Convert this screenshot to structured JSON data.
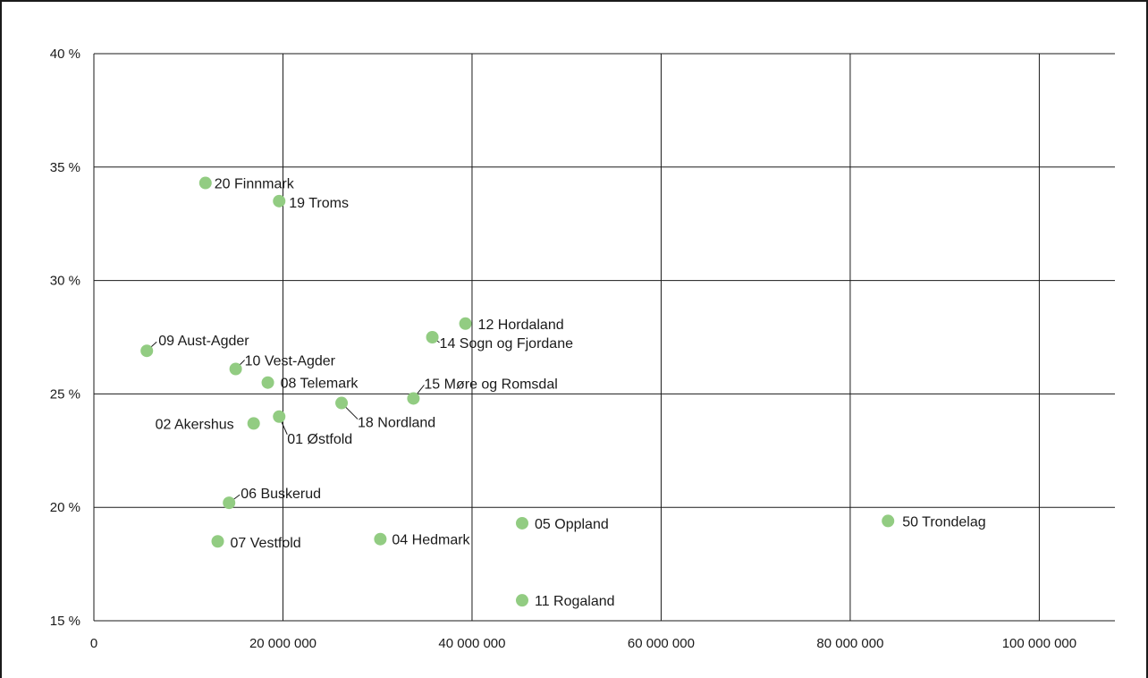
{
  "chart_data": {
    "type": "scatter",
    "xlim": [
      0,
      108000000
    ],
    "ylim": [
      15,
      40
    ],
    "x_ticks": [
      {
        "value": 0,
        "label": "0"
      },
      {
        "value": 20000000,
        "label": "20 000 000"
      },
      {
        "value": 40000000,
        "label": "40 000 000"
      },
      {
        "value": 60000000,
        "label": "60 000 000"
      },
      {
        "value": 80000000,
        "label": "80 000 000"
      },
      {
        "value": 100000000,
        "label": "100 000 000"
      }
    ],
    "y_ticks": [
      {
        "value": 15,
        "label": "15 %"
      },
      {
        "value": 20,
        "label": "20 %"
      },
      {
        "value": 25,
        "label": "25 %"
      },
      {
        "value": 30,
        "label": "30 %"
      },
      {
        "value": 35,
        "label": "35 %"
      },
      {
        "value": 40,
        "label": "40 %"
      }
    ],
    "grid": true,
    "marker_color": "#92cc82",
    "points": [
      {
        "label": "20 Finnmark",
        "x": 11800000,
        "y": 34.3
      },
      {
        "label": "19 Troms",
        "x": 19600000,
        "y": 33.5
      },
      {
        "label": "12 Hordaland",
        "x": 39300000,
        "y": 28.1
      },
      {
        "label": "14 Sogn og Fjordane",
        "x": 35800000,
        "y": 27.5
      },
      {
        "label": "09 Aust-Agder",
        "x": 5600000,
        "y": 26.9
      },
      {
        "label": "10 Vest-Agder",
        "x": 15000000,
        "y": 26.1
      },
      {
        "label": "08 Telemark",
        "x": 18400000,
        "y": 25.5
      },
      {
        "label": "15 Møre og Romsdal",
        "x": 33800000,
        "y": 24.8
      },
      {
        "label": "18 Nordland",
        "x": 26200000,
        "y": 24.6
      },
      {
        "label": "01 Østfold",
        "x": 19600000,
        "y": 24.0
      },
      {
        "label": "02 Akershus",
        "x": 16900000,
        "y": 23.7
      },
      {
        "label": "06 Buskerud",
        "x": 14300000,
        "y": 20.2
      },
      {
        "label": "05 Oppland",
        "x": 45300000,
        "y": 19.3
      },
      {
        "label": "50 Trondelag",
        "x": 84000000,
        "y": 19.4
      },
      {
        "label": "04 Hedmark",
        "x": 30300000,
        "y": 18.6
      },
      {
        "label": "07 Vestfold",
        "x": 13100000,
        "y": 18.5
      },
      {
        "label": "11 Rogaland",
        "x": 45300000,
        "y": 15.9
      }
    ]
  }
}
